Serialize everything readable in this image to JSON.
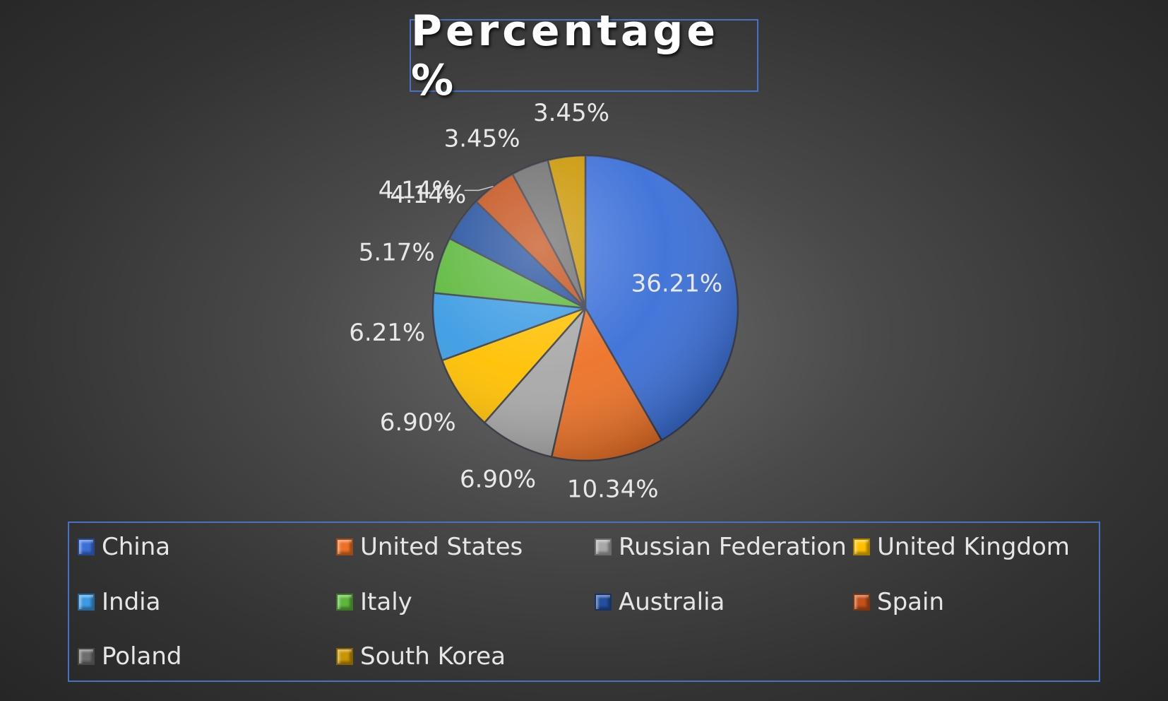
{
  "chart_data": {
    "type": "pie",
    "title": "Percentage %",
    "legend_position": "bottom",
    "slices": [
      {
        "name": "China",
        "value": 36.21,
        "label": "36.21%",
        "color": "#3a6fd8"
      },
      {
        "name": "United States",
        "value": 10.34,
        "label": "10.34%",
        "color": "#ed7125"
      },
      {
        "name": "Russian Federation",
        "value": 6.9,
        "label": "6.90%",
        "color": "#a8a8a8"
      },
      {
        "name": "United Kingdom",
        "value": 6.9,
        "label": "6.90%",
        "color": "#ffc000"
      },
      {
        "name": "India",
        "value": 6.21,
        "label": "6.21%",
        "color": "#3b9be3"
      },
      {
        "name": "Italy",
        "value": 5.17,
        "label": "5.17%",
        "color": "#5cb83b"
      },
      {
        "name": "Australia",
        "value": 4.14,
        "label": "4.14%",
        "color": "#234f9e"
      },
      {
        "name": "Spain",
        "value": 4.14,
        "label": "4.14%",
        "color": "#c4501a"
      },
      {
        "name": "Poland",
        "value": 3.45,
        "label": "3.45%",
        "color": "#6e6e6e"
      },
      {
        "name": "South Korea",
        "value": 3.45,
        "label": "3.45%",
        "color": "#c99500"
      }
    ]
  }
}
